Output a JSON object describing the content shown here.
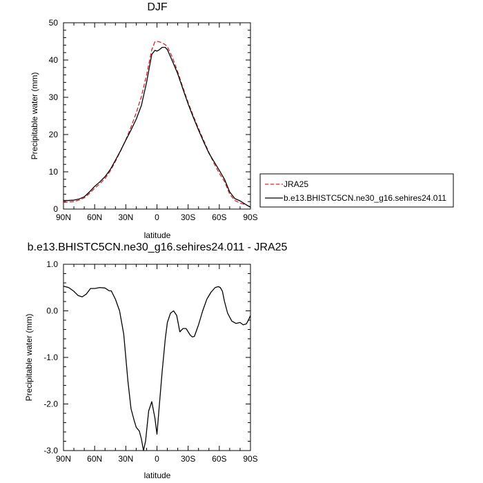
{
  "chart_data": [
    {
      "type": "line",
      "title": "DJF",
      "xlabel": "latitude",
      "ylabel": "Precipitable water (mm)",
      "xlim": [
        90,
        -90
      ],
      "ylim": [
        0,
        50
      ],
      "x_ticks": [
        90,
        60,
        30,
        0,
        -30,
        -60,
        -90
      ],
      "x_tick_labels": [
        "90N",
        "60N",
        "30N",
        "0",
        "30S",
        "60S",
        "90S"
      ],
      "y_ticks": [
        0,
        10,
        20,
        30,
        40,
        50
      ],
      "y_tick_labels": [
        "0",
        "10",
        "20",
        "30",
        "40",
        "50"
      ],
      "grid": false,
      "legend_placement": "right",
      "series": [
        {
          "name": "JRA25",
          "color": "#e0202a",
          "style": "dashed",
          "x": [
            90,
            85,
            80,
            75,
            70,
            65,
            60,
            55,
            50,
            45,
            40,
            35,
            30,
            25,
            20,
            15,
            10,
            5,
            2,
            0,
            -2,
            -5,
            -8,
            -10,
            -15,
            -20,
            -25,
            -30,
            -35,
            -40,
            -45,
            -50,
            -55,
            -60,
            -65,
            -70,
            -75,
            -80,
            -85,
            -90
          ],
          "y": [
            1.8,
            1.9,
            2.0,
            2.4,
            3.0,
            4.2,
            5.6,
            6.8,
            8.2,
            10.2,
            12.8,
            15.6,
            18.6,
            22.0,
            25.8,
            30.2,
            36.0,
            42.8,
            44.9,
            45.0,
            44.9,
            44.6,
            44.1,
            43.6,
            40.6,
            36.8,
            32.6,
            28.6,
            25.0,
            21.6,
            18.4,
            15.2,
            12.2,
            9.6,
            7.4,
            4.0,
            2.3,
            1.6,
            1.2,
            0.6
          ]
        },
        {
          "name": "b.e13.BHISTC5CN.ne30_g16.sehires24.011",
          "color": "#000000",
          "style": "solid",
          "x": [
            90,
            85,
            80,
            75,
            70,
            65,
            60,
            55,
            50,
            45,
            40,
            35,
            30,
            25,
            20,
            15,
            10,
            5,
            2,
            0,
            -2,
            -5,
            -8,
            -10,
            -15,
            -20,
            -25,
            -30,
            -35,
            -40,
            -45,
            -50,
            -55,
            -60,
            -65,
            -70,
            -75,
            -80,
            -85,
            -90
          ],
          "y": [
            2.3,
            2.3,
            2.4,
            2.7,
            3.3,
            4.6,
            6.1,
            7.3,
            8.7,
            10.6,
            13.1,
            15.7,
            18.5,
            21.2,
            24.1,
            27.8,
            34.0,
            41.5,
            42.6,
            42.4,
            42.7,
            43.4,
            43.4,
            42.8,
            39.6,
            36.3,
            32.2,
            28.2,
            24.6,
            21.2,
            18.0,
            15.0,
            12.7,
            10.4,
            8.0,
            4.6,
            2.8,
            2.2,
            1.3,
            0.5
          ]
        }
      ]
    },
    {
      "type": "line",
      "title": "b.e13.BHISTC5CN.ne30_g16.sehires24.011 - JRA25",
      "xlabel": "latitude",
      "ylabel": "Precipitable water (mm)",
      "xlim": [
        90,
        -90
      ],
      "ylim": [
        -3,
        1
      ],
      "x_ticks": [
        90,
        60,
        30,
        0,
        -30,
        -60,
        -90
      ],
      "x_tick_labels": [
        "90N",
        "60N",
        "30N",
        "0",
        "30S",
        "60S",
        "90S"
      ],
      "y_ticks": [
        -3,
        -2,
        -1,
        0,
        1
      ],
      "y_tick_labels": [
        "-3.0",
        "-2.0",
        "-1.0",
        "0.0",
        "1.0"
      ],
      "grid": false,
      "series": [
        {
          "color": "#000000",
          "style": "solid",
          "x": [
            90,
            85,
            80,
            76,
            72,
            68,
            64,
            60,
            55,
            50,
            46,
            44,
            40,
            36,
            32,
            28,
            25,
            22,
            20,
            17,
            15,
            13,
            11,
            8,
            5,
            2,
            0,
            -2,
            -5,
            -8,
            -10,
            -13,
            -16,
            -19,
            -22,
            -25,
            -28,
            -32,
            -34,
            -36,
            -40,
            -44,
            -48,
            -52,
            -56,
            -59,
            -61,
            -63,
            -65,
            -68,
            -72,
            -76,
            -80,
            -83,
            -86,
            -88,
            -90
          ],
          "y": [
            0.53,
            0.5,
            0.42,
            0.33,
            0.3,
            0.36,
            0.48,
            0.48,
            0.5,
            0.49,
            0.43,
            0.43,
            0.25,
            0.0,
            -0.5,
            -1.5,
            -2.1,
            -2.35,
            -2.5,
            -2.58,
            -2.75,
            -3.0,
            -2.8,
            -2.15,
            -1.95,
            -2.3,
            -2.65,
            -2.1,
            -1.3,
            -0.6,
            -0.25,
            -0.05,
            0.0,
            -0.1,
            -0.45,
            -0.38,
            -0.38,
            -0.52,
            -0.56,
            -0.55,
            -0.3,
            0.0,
            0.25,
            0.4,
            0.5,
            0.52,
            0.5,
            0.42,
            0.2,
            -0.05,
            -0.22,
            -0.27,
            -0.25,
            -0.3,
            -0.28,
            -0.2,
            -0.1
          ]
        }
      ]
    }
  ]
}
